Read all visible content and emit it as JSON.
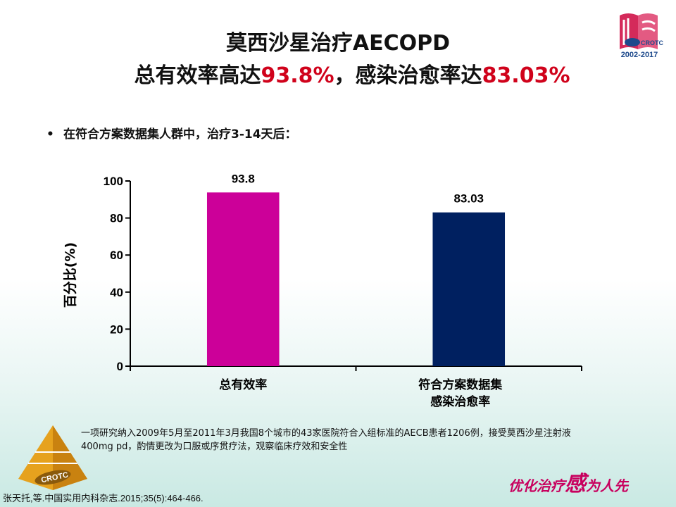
{
  "title": {
    "line1": "莫西沙星治疗AECOPD",
    "line2_part1": "总有效率高达",
    "line2_value1": "93.8%",
    "line2_part2": "，感染治愈率达",
    "line2_value2": "83.03%"
  },
  "logo": {
    "text": "CROTC",
    "years": "2002-2017"
  },
  "bullet": {
    "marker": "•",
    "text": "在符合方案数据集人群中，治疗3-14天后："
  },
  "chart_data": {
    "type": "bar",
    "categories": [
      "总有效率",
      "符合方案数据集\n感染治愈率"
    ],
    "category_lines": [
      [
        "总有效率"
      ],
      [
        "符合方案数据集",
        "感染治愈率"
      ]
    ],
    "values": [
      93.8,
      83.03
    ],
    "value_labels": [
      "93.8",
      "83.03"
    ],
    "colors": [
      "#cc0099",
      "#002060"
    ],
    "ylabel": "百分比(%)",
    "ylim": [
      0,
      100
    ],
    "yticks": [
      0,
      20,
      40,
      60,
      80,
      100
    ],
    "grid": false
  },
  "note": "一项研究纳入2009年5月至2011年3月我国8个城市的43家医院符合入组标准的AECB患者1206例，接受莫西沙星注射液400mg pd，酌情更改为口服或序贯疗法，观察临床疗效和安全性",
  "reference": "张天托,等.中国实用内科杂志.2015;35(5):464-466.",
  "pyramid_label": "CROTC",
  "slogan": {
    "part1": "优化治疗",
    "big": "感",
    "part2": "为人先"
  }
}
